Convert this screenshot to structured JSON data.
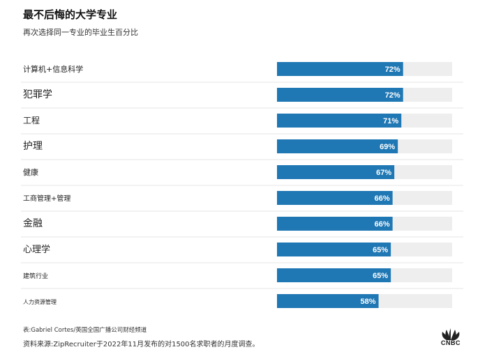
{
  "title": "最不后悔的大学专业",
  "subtitle": "再次选择同一专业的毕业生百分比",
  "chart_data": {
    "type": "bar",
    "orientation": "horizontal",
    "title": "最不后悔的大学专业",
    "subtitle": "再次选择同一专业的毕业生百分比",
    "categories": [
      "计算机+信息科学",
      "犯罪学",
      "工程",
      "护理",
      "健康",
      "工商管理+管理",
      "金融",
      "心理学",
      "建筑行业",
      "人力资源管理"
    ],
    "values": [
      72,
      72,
      71,
      69,
      67,
      66,
      66,
      65,
      65,
      58
    ],
    "value_labels": [
      "72%",
      "72%",
      "71%",
      "69%",
      "67%",
      "66%",
      "66%",
      "65%",
      "65%",
      "58%"
    ],
    "xlim": [
      0,
      100
    ],
    "colors": {
      "bar": "#1f77b4",
      "track": "#eeeeee"
    },
    "xlabel": "",
    "ylabel": ""
  },
  "footer": {
    "credit": "表:Gabriel Cortes/英国全国广播公司财经频道",
    "source": "资料来源:ZipRecruiter于2022年11月发布的对1500名求职者的月度调查。"
  },
  "logo": {
    "icon": "peacock-icon",
    "text": "CNBC"
  }
}
